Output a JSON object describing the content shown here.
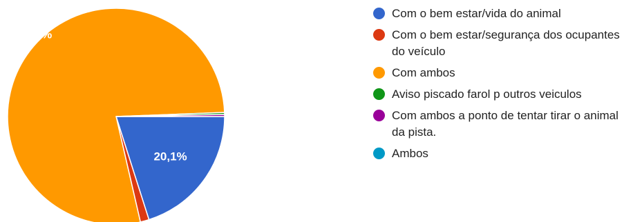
{
  "chart_data": {
    "type": "pie",
    "slices": [
      {
        "label": "Com o bem estar/vida do animal",
        "value": 20.1,
        "color": "#3366cc",
        "value_label": "20,1%"
      },
      {
        "label": "Com o bem estar/segurança dos ocupantes do veículo",
        "value": 1.3,
        "color": "#dc3912",
        "value_label": ""
      },
      {
        "label": "Com ambos",
        "value": 78.0,
        "color": "#ff9900",
        "value_label": "78%"
      },
      {
        "label": "Aviso piscado farol p outros veiculos",
        "value": 0.3,
        "color": "#109618",
        "value_label": ""
      },
      {
        "label": "Com ambos a ponto de tentar tirar o animal da pista.",
        "value": 0.3,
        "color": "#990099",
        "value_label": ""
      },
      {
        "label": "Ambos",
        "value": 0.0,
        "color": "#0099c6",
        "value_label": ""
      }
    ],
    "legend_position": "right",
    "start_angle_deg": 90
  }
}
